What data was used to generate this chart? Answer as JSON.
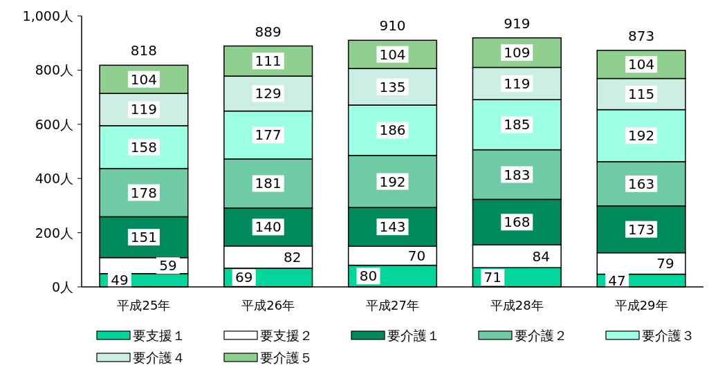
{
  "chart_data": {
    "type": "bar",
    "stacked": true,
    "categories": [
      "平成25年",
      "平成26年",
      "平成27年",
      "平成28年",
      "平成29年"
    ],
    "series": [
      {
        "name": "要支援１",
        "color": "#00d69b",
        "values": [
          49,
          69,
          80,
          71,
          47
        ]
      },
      {
        "name": "要支援２",
        "color": "#ffffff",
        "values": [
          59,
          82,
          70,
          84,
          79
        ]
      },
      {
        "name": "要介護１",
        "color": "#008a5e",
        "values": [
          151,
          140,
          143,
          168,
          173
        ]
      },
      {
        "name": "要介護２",
        "color": "#6fcaa6",
        "values": [
          178,
          181,
          192,
          183,
          163
        ]
      },
      {
        "name": "要介護３",
        "color": "#9cffe4",
        "values": [
          158,
          177,
          186,
          185,
          192
        ]
      },
      {
        "name": "要介護４",
        "color": "#cdeee2",
        "values": [
          119,
          129,
          135,
          119,
          115
        ]
      },
      {
        "name": "要介護５",
        "color": "#8fcf8f",
        "values": [
          104,
          111,
          104,
          109,
          104
        ]
      }
    ],
    "totals": [
      "818",
      "889",
      "910",
      "919",
      "873"
    ],
    "ylim": [
      0,
      1000
    ],
    "yticks": [
      {
        "value": 0,
        "label": "0人"
      },
      {
        "value": 200,
        "label": "200人"
      },
      {
        "value": 400,
        "label": "400人"
      },
      {
        "value": 600,
        "label": "600人"
      },
      {
        "value": 800,
        "label": "800人"
      },
      {
        "value": 1000,
        "label": "1,000人"
      }
    ],
    "data_labels": true,
    "grid": false,
    "legend": "bottom"
  }
}
